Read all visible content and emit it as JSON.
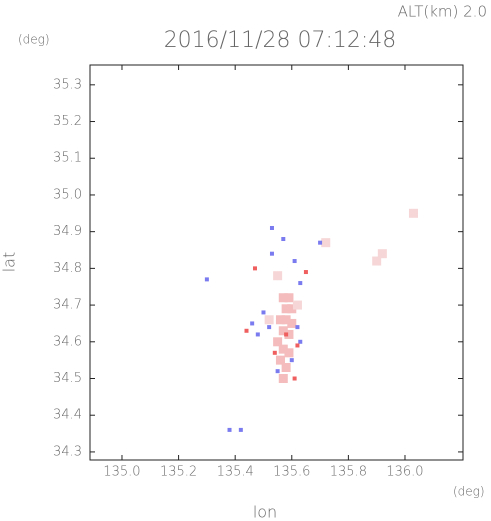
{
  "chart_data": {
    "type": "scatter",
    "title": "2016/11/28 07:12:48",
    "altitude_label": "ALT(km) 2.0",
    "y_unit": "(deg)",
    "x_unit": "(deg)",
    "xlabel": "lon",
    "ylabel": "lat",
    "xlim": [
      134.887,
      136.205
    ],
    "ylim": [
      34.278,
      35.354
    ],
    "xticks": [
      {
        "value": 135.0,
        "label": "135.0"
      },
      135.2,
      135.4,
      135.6,
      135.8,
      {
        "value": 136.0,
        "label": "136.0"
      }
    ],
    "yticks": [
      34.3,
      34.4,
      34.5,
      34.6,
      34.7,
      34.8,
      34.9,
      {
        "value": 35.0,
        "label": "35.0"
      },
      35.1,
      35.2,
      35.3
    ],
    "point_groups": [
      {
        "color": "#f4bcbc",
        "x": [
          135.57,
          135.59,
          135.58,
          135.6,
          135.56,
          135.58,
          135.6,
          135.57,
          135.59,
          135.55,
          135.57,
          135.59,
          135.56,
          135.58,
          135.57
        ],
        "y": [
          34.72,
          34.72,
          34.69,
          34.69,
          34.66,
          34.66,
          34.65,
          34.63,
          34.62,
          34.6,
          34.58,
          34.57,
          34.55,
          34.53,
          34.5
        ]
      },
      {
        "color": "#f6d6d6",
        "x": [
          135.9,
          135.92,
          136.03,
          135.72,
          135.55,
          135.52,
          135.62
        ],
        "y": [
          34.82,
          34.84,
          34.95,
          34.87,
          34.78,
          34.66,
          34.7
        ]
      },
      {
        "color": "#7b7bf0",
        "x": [
          135.5,
          135.52,
          135.48,
          135.62,
          135.63,
          135.55,
          135.6,
          135.46,
          135.53,
          135.57,
          135.61,
          135.7,
          135.38,
          135.42,
          135.3,
          135.53,
          135.63
        ],
        "y": [
          34.68,
          34.64,
          34.62,
          34.64,
          34.6,
          34.52,
          34.55,
          34.65,
          34.84,
          34.88,
          34.82,
          34.87,
          34.36,
          34.36,
          34.77,
          34.91,
          34.76
        ]
      },
      {
        "color": "#ef5f5f",
        "x": [
          135.44,
          135.58,
          135.54,
          135.65,
          135.62,
          135.47,
          135.61
        ],
        "y": [
          34.63,
          34.62,
          34.57,
          34.79,
          34.59,
          34.8,
          34.5
        ]
      }
    ]
  }
}
